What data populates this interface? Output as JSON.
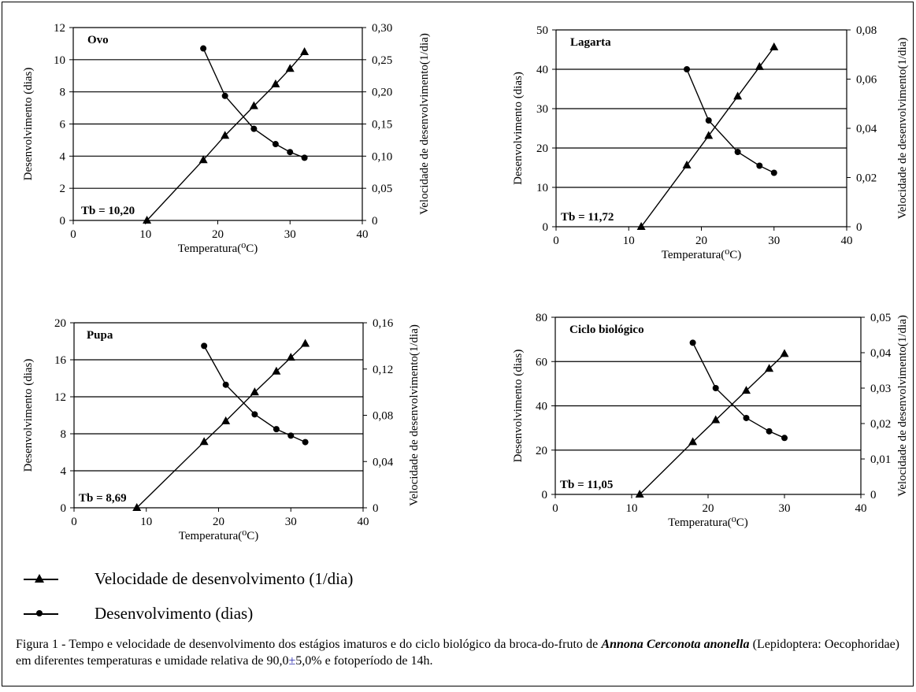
{
  "chart_data": [
    {
      "type": "line",
      "title": "Ovo",
      "annotation": "Tb = 10,20",
      "xlabel": "Temperatura(⁰C)",
      "ylabel": "Desenvolvimento (dias)",
      "y2label": "Velocidade de desenvolvimento(1/dia)",
      "xlim": [
        0,
        40
      ],
      "ylim": [
        0,
        12
      ],
      "y2lim": [
        0,
        0.3
      ],
      "x_ticks": [
        "0",
        "10",
        "20",
        "30",
        "40"
      ],
      "y_ticks": [
        "0",
        "2",
        "4",
        "6",
        "8",
        "10",
        "12"
      ],
      "y2_ticks": [
        "0",
        "0,05",
        "0,10",
        "0,15",
        "0,20",
        "0,25",
        "0,30"
      ],
      "grid": true,
      "series": [
        {
          "name": "Velocidade de desenvolvimento (1/dia)",
          "axis": "y2",
          "marker": "triangle",
          "x": [
            10.2,
            18,
            21,
            25,
            28,
            30,
            32
          ],
          "y": [
            0,
            0.094,
            0.132,
            0.178,
            0.212,
            0.236,
            0.262
          ]
        },
        {
          "name": "Desenvolvimento (dias)",
          "axis": "y",
          "marker": "circle",
          "x": [
            18,
            21,
            25,
            28,
            30,
            32
          ],
          "y": [
            10.7,
            7.75,
            5.7,
            4.75,
            4.25,
            3.9
          ]
        }
      ]
    },
    {
      "type": "line",
      "title": "Lagarta",
      "annotation": "Tb = 11,72",
      "xlabel": "Temperatura(⁰C)",
      "ylabel": "Desenvolvimento (dias)",
      "y2label": "Velocidade de desenvolvimento(1/dia)",
      "xlim": [
        0,
        40
      ],
      "ylim": [
        0,
        50
      ],
      "y2lim": [
        0,
        0.08
      ],
      "x_ticks": [
        "0",
        "10",
        "20",
        "30",
        "40"
      ],
      "y_ticks": [
        "0",
        "10",
        "20",
        "30",
        "40",
        "50"
      ],
      "y2_ticks": [
        "0",
        "0,02",
        "0,04",
        "0,06",
        "0,08"
      ],
      "grid": true,
      "series": [
        {
          "name": "Velocidade de desenvolvimento (1/dia)",
          "axis": "y2",
          "marker": "triangle",
          "x": [
            11.72,
            18,
            21,
            25,
            28,
            30
          ],
          "y": [
            0,
            0.025,
            0.037,
            0.053,
            0.065,
            0.073
          ]
        },
        {
          "name": "Desenvolvimento (dias)",
          "axis": "y",
          "marker": "circle",
          "x": [
            18,
            21,
            25,
            28,
            30
          ],
          "y": [
            40,
            27,
            19,
            15.5,
            13.7
          ]
        }
      ]
    },
    {
      "type": "line",
      "title": "Pupa",
      "annotation": "Tb = 8,69",
      "xlabel": "Temperatura(⁰C)",
      "ylabel": "Desenvolvimento (dias)",
      "y2label": "Velocidade de desenvolvimento(1/dia)",
      "xlim": [
        0,
        40
      ],
      "ylim": [
        0,
        20
      ],
      "y2lim": [
        0,
        0.16
      ],
      "x_ticks": [
        "0",
        "10",
        "20",
        "30",
        "40"
      ],
      "y_ticks": [
        "0",
        "4",
        "8",
        "12",
        "16",
        "20"
      ],
      "y2_ticks": [
        "0",
        "0,04",
        "0,08",
        "0,12",
        "0,16"
      ],
      "grid": true,
      "series": [
        {
          "name": "Velocidade de desenvolvimento (1/dia)",
          "axis": "y2",
          "marker": "triangle",
          "x": [
            8.69,
            18,
            21,
            25,
            28,
            30,
            32
          ],
          "y": [
            0,
            0.057,
            0.075,
            0.1,
            0.118,
            0.13,
            0.142
          ]
        },
        {
          "name": "Desenvolvimento (dias)",
          "axis": "y",
          "marker": "circle",
          "x": [
            18,
            21,
            25,
            28,
            30,
            32
          ],
          "y": [
            17.5,
            13.3,
            10.1,
            8.5,
            7.8,
            7.1
          ]
        }
      ]
    },
    {
      "type": "line",
      "title": "Ciclo biológico",
      "annotation": "Tb = 11,05",
      "xlabel": "Temperatura(⁰C)",
      "ylabel": "Desenvolvimento (dias)",
      "y2label": "Velocidade de desenvolvimento(1/dia)",
      "xlim": [
        0,
        40
      ],
      "ylim": [
        0,
        80
      ],
      "y2lim": [
        0,
        0.05
      ],
      "x_ticks": [
        "0",
        "10",
        "20",
        "30",
        "40"
      ],
      "y_ticks": [
        "0",
        "20",
        "40",
        "60",
        "80"
      ],
      "y2_ticks": [
        "0",
        "0,01",
        "0,02",
        "0,03",
        "0,04",
        "0,05"
      ],
      "grid": true,
      "series": [
        {
          "name": "Velocidade de desenvolvimento (1/dia)",
          "axis": "y2",
          "marker": "triangle",
          "x": [
            11.05,
            18,
            21,
            25,
            28,
            30
          ],
          "y": [
            0,
            0.0148,
            0.021,
            0.0293,
            0.0355,
            0.0397
          ]
        },
        {
          "name": "Desenvolvimento (dias)",
          "axis": "y",
          "marker": "circle",
          "x": [
            18,
            21,
            25,
            28,
            30
          ],
          "y": [
            68.5,
            48,
            34.5,
            28.5,
            25.5
          ]
        }
      ]
    }
  ],
  "legend": {
    "items": [
      {
        "label": "Velocidade de desenvolvimento (1/dia)",
        "marker": "triangle"
      },
      {
        "label": "Desenvolvimento (dias)",
        "marker": "circle"
      }
    ]
  },
  "caption": {
    "prefix": "Figura 1 - Tempo e velocidade de desenvolvimento dos estágios imaturos e do ciclo biológico da broca-do-fruto de ",
    "species": "Annona Cerconota anonella",
    "middle": " (Lepidoptera: Oecophoridae) em diferentes temperaturas e umidade relativa de 90,0",
    "pm": "±",
    "suffix": "5,0% e fotoperíodo de 14h."
  },
  "colors": {
    "ink": "#000000",
    "gridline": "#000000",
    "background": "#ffffff"
  }
}
